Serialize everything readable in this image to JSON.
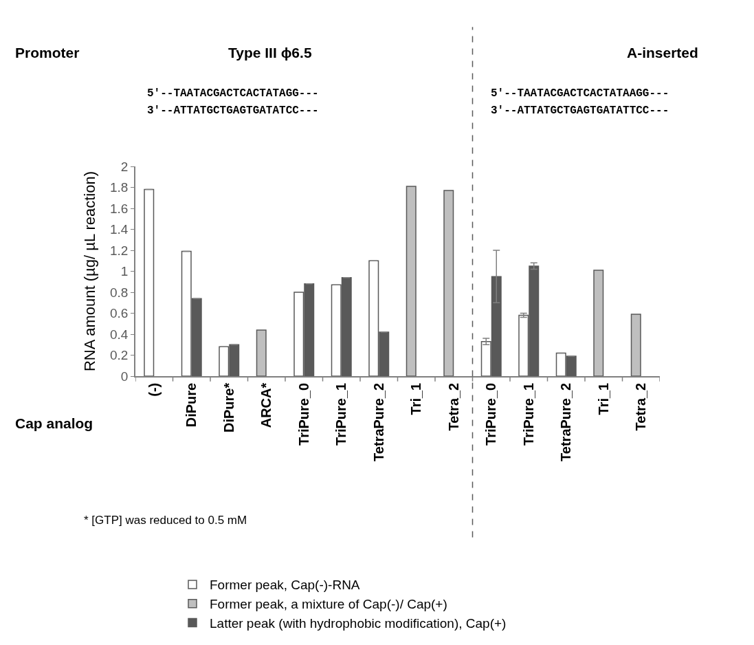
{
  "chart_data": {
    "type": "bar",
    "ylabel": "RNA amount (µg/ µL reaction)",
    "categories": [
      "(-)",
      "DiPure",
      "DiPure*",
      "ARCA*",
      "TriPure_0",
      "TriPure_1",
      "TetraPure_2",
      "Tri_1",
      "Tetra_2",
      "TriPure_0",
      "TriPure_1",
      "TetraPure_2",
      "Tri_1",
      "Tetra_2"
    ],
    "series": [
      {
        "name": "Former peak, Cap(-)-RNA",
        "color": "#ffffff",
        "values": [
          1.78,
          1.19,
          0.28,
          null,
          0.8,
          0.87,
          1.1,
          null,
          null,
          0.33,
          0.58,
          0.22,
          null,
          null
        ],
        "errors": [
          null,
          null,
          null,
          null,
          null,
          null,
          null,
          null,
          null,
          0.03,
          0.02,
          null,
          null,
          null
        ]
      },
      {
        "name": "Former peak, a mixture of Cap(-)/ Cap(+)",
        "color": "#bfbfbf",
        "values": [
          null,
          null,
          null,
          0.44,
          null,
          null,
          null,
          1.81,
          1.77,
          null,
          null,
          null,
          1.01,
          0.59
        ]
      },
      {
        "name": "Latter peak (with hydrophobic modification), Cap(+)",
        "color": "#595959",
        "values": [
          null,
          0.74,
          0.3,
          null,
          0.88,
          0.94,
          0.42,
          null,
          null,
          0.95,
          1.05,
          0.19,
          null,
          null
        ],
        "errors": [
          null,
          null,
          null,
          null,
          null,
          null,
          null,
          null,
          null,
          0.25,
          0.03,
          null,
          null,
          null
        ]
      }
    ],
    "ylim": [
      0,
      2
    ],
    "yticks": [
      0,
      0.2,
      0.4,
      0.6,
      0.8,
      1,
      1.2,
      1.4,
      1.6,
      1.8,
      2
    ],
    "legend": "bottom",
    "annotations": [
      "Promoter",
      "Type III ϕ6.5",
      "A-inserted",
      "5′--TAATACGACTCACTATAGG---",
      "3′--ATTATGCTGAGTGATATCC---",
      "5′--TAATACGACTCACTATAAGG---",
      "3′--ATTATGCTGAGTGATATTCC---",
      "Cap analog",
      "* [GTP] was reduced to 0.5 mM"
    ]
  }
}
